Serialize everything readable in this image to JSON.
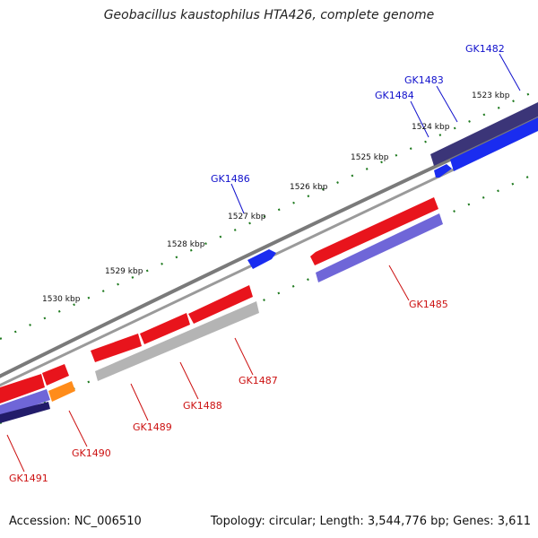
{
  "title": "Geobacillus kaustophilus HTA426, complete genome",
  "footer": {
    "accession": "Accession: NC_006510",
    "summary": "Topology: circular; Length: 3,544,776 bp; Genes: 3,611"
  },
  "colors": {
    "backbone": "#8a8a8a",
    "tick": "#1f7a1f",
    "plus_label": "#1010cc",
    "minus_label": "#cc1111",
    "red_gene": "#e8141c",
    "blue_gene": "#1a2cf0",
    "navy_gene": "#3b3578",
    "purple_gene": "#6f66d8",
    "grey_gene": "#b4b4b4",
    "orange_gene": "#ff8c1a"
  },
  "scale_labels": [
    "1523 kbp",
    "1524 kbp",
    "1525 kbp",
    "1526 kbp",
    "1527 kbp",
    "1528 kbp",
    "1529 kbp",
    "1530 kbp"
  ],
  "gene_labels_plus": [
    "GK1482",
    "GK1483",
    "GK1484",
    "GK1486"
  ],
  "gene_labels_minus": [
    "GK1485",
    "GK1487",
    "GK1488",
    "GK1489",
    "GK1490",
    "GK1491"
  ]
}
